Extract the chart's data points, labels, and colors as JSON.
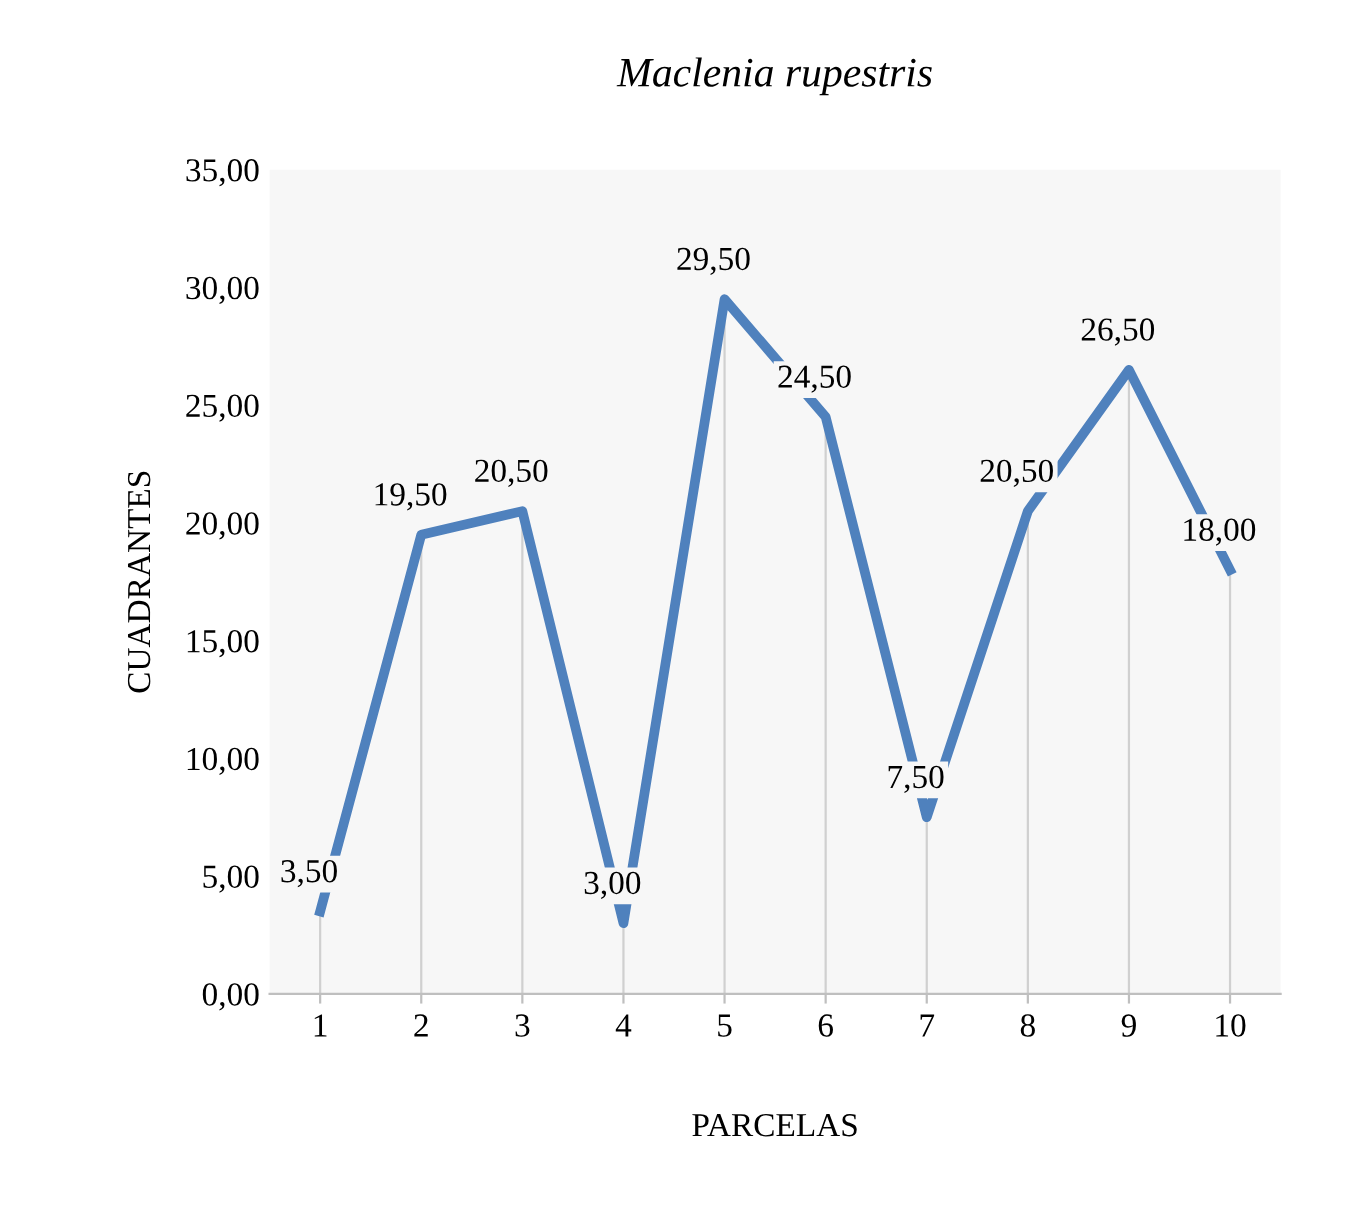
{
  "chart_data": {
    "type": "line",
    "title": "Maclenia rupestris",
    "xlabel": "PARCELAS",
    "ylabel": "CUADRANTES",
    "categories": [
      "1",
      "2",
      "3",
      "4",
      "5",
      "6",
      "7",
      "8",
      "9",
      "10"
    ],
    "series": [
      {
        "color": "#4f81bd",
        "values": [
          3.5,
          19.5,
          20.5,
          3.0,
          29.5,
          24.5,
          7.5,
          20.5,
          26.5,
          18.0
        ],
        "value_labels": [
          "3,50",
          "19,50",
          "20,50",
          "3,00",
          "29,50",
          "24,50",
          "7,50",
          "20,50",
          "26,50",
          "18,00"
        ]
      }
    ],
    "ylim": [
      0,
      35
    ],
    "yticks": [
      {
        "value": 0,
        "label": "0,00"
      },
      {
        "value": 5,
        "label": "5,00"
      },
      {
        "value": 10,
        "label": "10,00"
      },
      {
        "value": 15,
        "label": "15,00"
      },
      {
        "value": 20,
        "label": "20,00"
      },
      {
        "value": 25,
        "label": "25,00"
      },
      {
        "value": 30,
        "label": "30,00"
      },
      {
        "value": 35,
        "label": "35,00"
      }
    ],
    "grid": "x",
    "legend": false,
    "marker": "none",
    "line_style": "solid"
  }
}
